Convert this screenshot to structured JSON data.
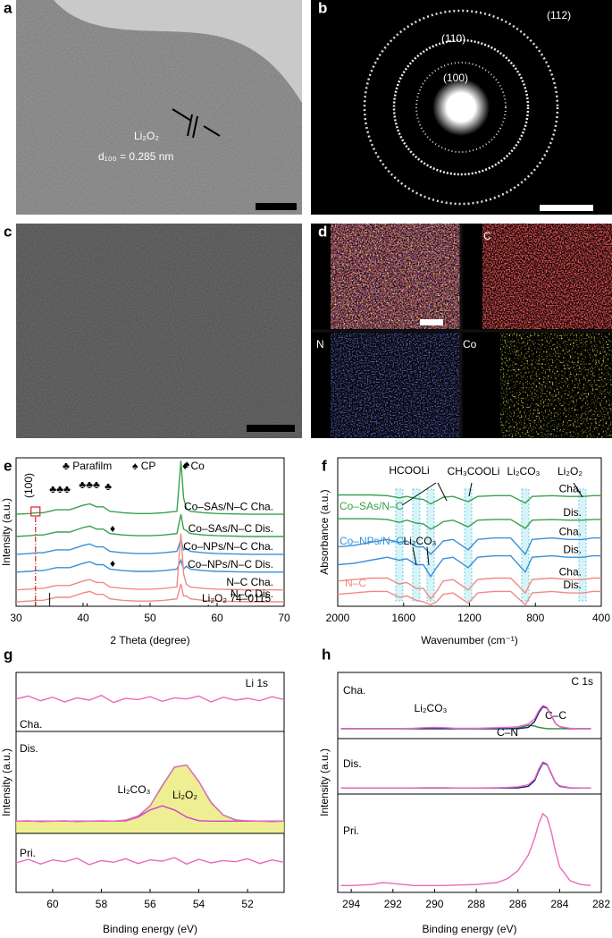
{
  "images": [
    {
      "label": "a",
      "texts": [
        "Li₂O₂",
        "d₁₀₀ = 0.285 nm"
      ]
    },
    {
      "label": "b",
      "texts": [
        "(112)",
        "(110)",
        "(100)"
      ]
    },
    {
      "label": "c"
    },
    {
      "label": "d",
      "texts": [
        "C",
        "N",
        "Co"
      ]
    }
  ],
  "chart_data": [
    {
      "type": "line",
      "label": "e",
      "xlabel": "2 Theta (degree)",
      "ylabel": "Intensity (a.u.)",
      "xlim": [
        30,
        70
      ],
      "xticks": [
        30,
        40,
        50,
        60,
        70
      ],
      "ylim": [
        0,
        100
      ],
      "x": [
        30,
        32,
        33,
        34,
        35,
        36,
        38,
        40,
        41,
        42,
        43,
        44,
        46,
        48,
        50,
        52,
        54,
        54.6,
        55,
        55.4,
        56,
        58,
        60,
        65,
        70
      ],
      "series": [
        {
          "name": "Co–SAs/N–C Cha.",
          "color": "#3aa04c",
          "values": [
            62,
            62.5,
            63,
            63,
            64,
            65,
            65,
            68,
            69,
            67,
            67,
            64,
            63,
            62.5,
            62.5,
            63,
            64,
            98,
            73,
            66,
            64,
            63,
            62.5,
            62,
            62
          ]
        },
        {
          "name": "Co–SAs/N–C Dis.",
          "color": "#3aa04c",
          "values": [
            47,
            47.5,
            48,
            48,
            49,
            50,
            50,
            53,
            54,
            52,
            52,
            49,
            48,
            47.5,
            47.5,
            48,
            49,
            62,
            52,
            51,
            49,
            48,
            47.5,
            47,
            47
          ]
        },
        {
          "name": "Co–NPs/N–C Cha.",
          "color": "#3a8fd8",
          "values": [
            35,
            35.5,
            36,
            36,
            37,
            38,
            38,
            41,
            42,
            40,
            40,
            37,
            36,
            35.5,
            35.5,
            36,
            37,
            45,
            38,
            39,
            37,
            36,
            35.5,
            35,
            35
          ]
        },
        {
          "name": "Co–NPs/N–C Dis.",
          "color": "#3a8fd8",
          "values": [
            23,
            23.5,
            24,
            24,
            25,
            26,
            26,
            29,
            30,
            28,
            28,
            25,
            24,
            23.5,
            23.5,
            24,
            25,
            31,
            25,
            27,
            25,
            24,
            23.5,
            23,
            23
          ]
        },
        {
          "name": "N–C Cha.",
          "color": "#f08a84",
          "values": [
            11,
            11.5,
            12,
            12,
            13,
            14,
            14,
            17,
            18,
            16,
            16,
            13,
            12,
            11.5,
            11.5,
            12,
            13,
            49,
            22,
            15,
            13,
            12,
            11.5,
            11,
            11
          ]
        },
        {
          "name": "N–C Dis.",
          "color": "#f08a84",
          "values": [
            3,
            3.5,
            4,
            4,
            5,
            6,
            6,
            9,
            10,
            8,
            8,
            5,
            4,
            3.5,
            3.5,
            4,
            5,
            15,
            7,
            7,
            5,
            4,
            3.5,
            3,
            3
          ]
        }
      ],
      "reference": {
        "name": "Li₂O₂ 74–0115",
        "color": "#222222",
        "x": [
          32.9,
          35.0,
          40.6,
          48.5,
          58.7
        ],
        "values": [
          3,
          9,
          2,
          1,
          1
        ]
      },
      "annotations": [
        "♣ Parafilm",
        "♠ CP",
        "♦ Co",
        "(100)",
        "♣♣♣",
        "♣♣♣",
        "♣",
        "♠",
        "♦",
        "♦"
      ]
    },
    {
      "type": "line",
      "label": "f",
      "xlabel": "Wavenumber (cm⁻¹)",
      "ylabel": "Absorbance (a.u.)",
      "xlim": [
        2000,
        400
      ],
      "xticks": [
        2000,
        1600,
        1200,
        800,
        400
      ],
      "ylim": [
        0,
        100
      ],
      "x": [
        2000,
        1900,
        1800,
        1700,
        1626,
        1580,
        1523,
        1480,
        1436,
        1400,
        1360,
        1300,
        1208,
        1150,
        1050,
        950,
        861,
        820,
        700,
        600,
        514,
        450,
        400
      ],
      "series": [
        {
          "name": "Cha.",
          "color": "#3aa04c",
          "values": [
            75,
            75,
            75,
            74.5,
            73,
            74,
            72.5,
            72,
            69,
            71,
            73.5,
            74,
            70.5,
            74,
            74.5,
            74.5,
            69.5,
            74,
            74.5,
            74,
            74,
            74.5,
            74.5
          ]
        },
        {
          "name": "Dis.",
          "color": "#3aa04c",
          "values": [
            59,
            59,
            59,
            58.5,
            56.5,
            58,
            56,
            55.5,
            52,
            54,
            57,
            58,
            53.5,
            58,
            58.5,
            58.5,
            52.5,
            58,
            58.5,
            58,
            58,
            58.5,
            58.5
          ]
        },
        {
          "name": "Cha.",
          "color": "#3a8fd8",
          "values": [
            40,
            41,
            43,
            45,
            43,
            44,
            40,
            40,
            35,
            39,
            44,
            45,
            38,
            45,
            46,
            46,
            35,
            45,
            46,
            45,
            45,
            46,
            46
          ]
        },
        {
          "name": "Dis.",
          "color": "#3a8fd8",
          "values": [
            28,
            29,
            31,
            33,
            31,
            32,
            28,
            28,
            20,
            26,
            32,
            33,
            26,
            33,
            34,
            34,
            23,
            33,
            34,
            33,
            33,
            34,
            34
          ]
        },
        {
          "name": "Cha.",
          "color": "#f08a84",
          "values": [
            17,
            18,
            19,
            19,
            15,
            16,
            12,
            12,
            5,
            10,
            17,
            18,
            11,
            18,
            19,
            19,
            9,
            18,
            19,
            18,
            18,
            19,
            19
          ]
        },
        {
          "name": "Dis.",
          "color": "#f08a84",
          "values": [
            8,
            9,
            10,
            10,
            6,
            7,
            4,
            3,
            1,
            3,
            8,
            9,
            2,
            9,
            10,
            10,
            1,
            9,
            10,
            9,
            9,
            10,
            10
          ]
        }
      ],
      "groups": [
        {
          "name": "Co–SAs/N–C",
          "color": "#3aa04c"
        },
        {
          "name": "Co–NPs/N–C",
          "color": "#3a8fd8"
        },
        {
          "name": "N–C",
          "color": "#f08a84"
        }
      ],
      "bands": [
        1626,
        1523,
        1436,
        1208,
        861,
        514
      ],
      "annotations": [
        "HCOOLi",
        "CH₃COOLi",
        "Li₂CO₃",
        "Li₂O₂",
        "Li₂CO₃"
      ]
    },
    {
      "type": "line",
      "label": "g",
      "title": "Li 1s",
      "xlabel": "Binding energy (eV)",
      "ylabel": "Intensity (a.u.)",
      "xlim": [
        61.5,
        50.5
      ],
      "xticks": [
        60,
        58,
        56,
        54,
        52
      ],
      "x": [
        61.5,
        61,
        60.5,
        60,
        59.5,
        59,
        58.5,
        58,
        57.5,
        57,
        56.5,
        56,
        55.5,
        55,
        54.5,
        54,
        53.5,
        53,
        52.5,
        52,
        51.5,
        51,
        50.5
      ],
      "panels": [
        {
          "name": "Cha.",
          "ylim": [
            0,
            100
          ],
          "series": [
            {
              "color": "#e86bbd",
              "values": [
                55,
                60,
                52,
                58,
                50,
                57,
                53,
                61,
                49,
                56,
                54,
                59,
                51,
                57,
                55,
                60,
                50,
                58,
                53,
                56,
                52,
                59,
                54
              ]
            }
          ]
        },
        {
          "name": "Dis.",
          "ylim": [
            0,
            100
          ],
          "series": [
            {
              "name": "Li₂O₂",
              "color": "#3a9a3a",
              "fill": "#eaea78",
              "values": [
                12,
                12,
                12,
                12,
                12,
                12,
                12,
                12,
                12,
                13,
                16.5,
                27,
                46.6,
                65,
                67,
                51,
                30.5,
                18,
                13.3,
                12,
                12,
                12,
                12
              ]
            },
            {
              "name": "Li₂CO₃",
              "color": "#d040d0",
              "values": [
                12,
                12,
                12,
                12,
                12,
                12,
                12,
                12,
                12,
                12.3,
                16,
                23,
                27,
                23,
                16,
                12.5,
                12,
                12,
                12,
                12,
                12,
                12,
                12
              ]
            },
            {
              "color": "#e86bbd",
              "values": [
                12,
                12.5,
                11.5,
                12,
                12.5,
                11.5,
                12,
                12.5,
                12,
                13,
                17,
                27,
                47,
                65,
                67,
                51,
                30,
                18,
                13,
                12.5,
                12,
                11.5,
                12
              ]
            }
          ]
        },
        {
          "name": "Pri.",
          "ylim": [
            0,
            100
          ],
          "series": [
            {
              "color": "#e86bbd",
              "values": [
                50,
                56,
                48,
                55,
                52,
                58,
                47,
                54,
                51,
                57,
                49,
                55,
                53,
                59,
                48,
                56,
                50,
                54,
                52,
                57,
                49,
                55,
                51
              ]
            }
          ]
        }
      ]
    },
    {
      "type": "line",
      "label": "h",
      "title": "C 1s",
      "xlabel": "Binding energy (eV)",
      "ylabel": "Intensity (a.u.)",
      "xlim": [
        294.65,
        282
      ],
      "xticks": [
        294,
        292,
        290,
        288,
        286,
        284,
        282
      ],
      "x": [
        294.5,
        294,
        293,
        292.5,
        292,
        291,
        290.5,
        290,
        289.5,
        289,
        288,
        287,
        286.5,
        286,
        285.5,
        285.2,
        285,
        284.8,
        284.6,
        284.4,
        284.2,
        284,
        283.5,
        283,
        282.5
      ],
      "panels": [
        {
          "name": "Cha.",
          "ylim": [
            0,
            100
          ],
          "series": [
            {
              "name": "C–N",
              "color": "#2a8a2a",
              "values": [
                15,
                15,
                15,
                15,
                15,
                15,
                15,
                15,
                15,
                15,
                15,
                15,
                15,
                16,
                20,
                19,
                17,
                16,
                15,
                15,
                15,
                15,
                15,
                15,
                15
              ]
            },
            {
              "name": "C–C",
              "color": "#1b1b7a",
              "values": [
                15,
                15,
                15,
                15,
                15,
                15,
                15,
                15,
                15,
                15,
                15,
                15,
                15,
                15,
                17,
                26,
                39,
                48,
                46,
                35,
                23,
                18,
                15,
                15,
                15
              ]
            },
            {
              "color": "#e86bbd",
              "values": [
                15,
                15,
                15,
                15,
                15,
                15.5,
                16.5,
                17,
                16.5,
                15.5,
                15.5,
                16.5,
                17,
                18,
                22,
                30,
                42,
                50,
                47,
                35,
                23,
                18,
                15.5,
                15,
                15
              ]
            }
          ]
        },
        {
          "name": "Dis.",
          "ylim": [
            0,
            100
          ],
          "series": [
            {
              "color": "#1b1b7a",
              "values": [
                11,
                11,
                11,
                11,
                11,
                11,
                11,
                11,
                11,
                11,
                11,
                11,
                11,
                11,
                14,
                24,
                42,
                56,
                53,
                37,
                21,
                14,
                11,
                11,
                11
              ]
            },
            {
              "color": "#e86bbd",
              "values": [
                11,
                11,
                11,
                11,
                11,
                11,
                11.5,
                11.5,
                11.5,
                11,
                11,
                11.5,
                12,
                13,
                17,
                27,
                45,
                58,
                54,
                38,
                22,
                15,
                11.5,
                11,
                11
              ]
            }
          ]
        },
        {
          "name": "Pri.",
          "ylim": [
            0,
            100
          ],
          "series": [
            {
              "color": "#e86bbd",
              "values": [
                7,
                7,
                8,
                10,
                9,
                7,
                7,
                7,
                7,
                7.5,
                8,
                10,
                14,
                22,
                38,
                55,
                70,
                80,
                76,
                62,
                42,
                26,
                12,
                8,
                7
              ]
            }
          ]
        }
      ],
      "annotations": [
        "Li₂CO₃"
      ]
    }
  ]
}
